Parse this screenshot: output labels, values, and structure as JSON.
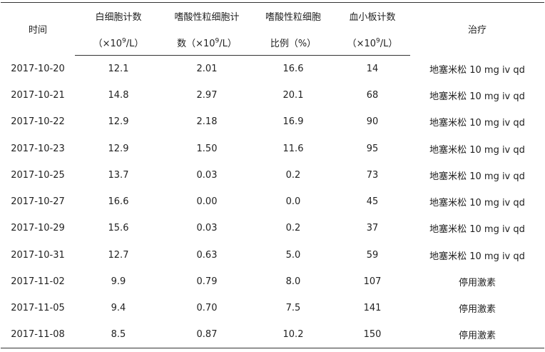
{
  "table": {
    "headers": [
      {
        "line1": "时间"
      },
      {
        "line1": "白细胞计数",
        "line2_pre": "（×10",
        "sup": "9",
        "line2_post": "/L）"
      },
      {
        "line1": "嗜酸性粒细胞计",
        "line2_pre": "数（×10",
        "sup": "9",
        "line2_post": "/L）"
      },
      {
        "line1": "嗜酸性粒细胞",
        "line2": "比例（%）"
      },
      {
        "line1": "血小板计数",
        "line2_pre": "（×10",
        "sup": "9",
        "line2_post": "/L）"
      },
      {
        "line1": "治疗"
      }
    ],
    "rows": [
      [
        "2017-10-20",
        "12.1",
        "2.01",
        "16.6",
        "14",
        "地塞米松 10 mg iv qd"
      ],
      [
        "2017-10-21",
        "14.8",
        "2.97",
        "20.1",
        "68",
        "地塞米松 10 mg iv qd"
      ],
      [
        "2017-10-22",
        "12.9",
        "2.18",
        "16.9",
        "90",
        "地塞米松 10 mg iv qd"
      ],
      [
        "2017-10-23",
        "12.9",
        "1.50",
        "11.6",
        "95",
        "地塞米松 10 mg iv qd"
      ],
      [
        "2017-10-25",
        "13.7",
        "0.03",
        "0.2",
        "73",
        "地塞米松 10 mg iv qd"
      ],
      [
        "2017-10-27",
        "16.6",
        "0.00",
        "0.0",
        "45",
        "地塞米松 10 mg iv qd"
      ],
      [
        "2017-10-29",
        "15.6",
        "0.03",
        "0.2",
        "37",
        "地塞米松 10 mg iv qd"
      ],
      [
        "2017-10-31",
        "12.7",
        "0.63",
        "5.0",
        "59",
        "地塞米松 10 mg iv qd"
      ],
      [
        "2017-11-02",
        "9.9",
        "0.79",
        "8.0",
        "107",
        "停用激素"
      ],
      [
        "2017-11-05",
        "9.4",
        "0.70",
        "7.5",
        "141",
        "停用激素"
      ],
      [
        "2017-11-08",
        "8.5",
        "0.87",
        "10.2",
        "150",
        "停用激素"
      ]
    ]
  }
}
